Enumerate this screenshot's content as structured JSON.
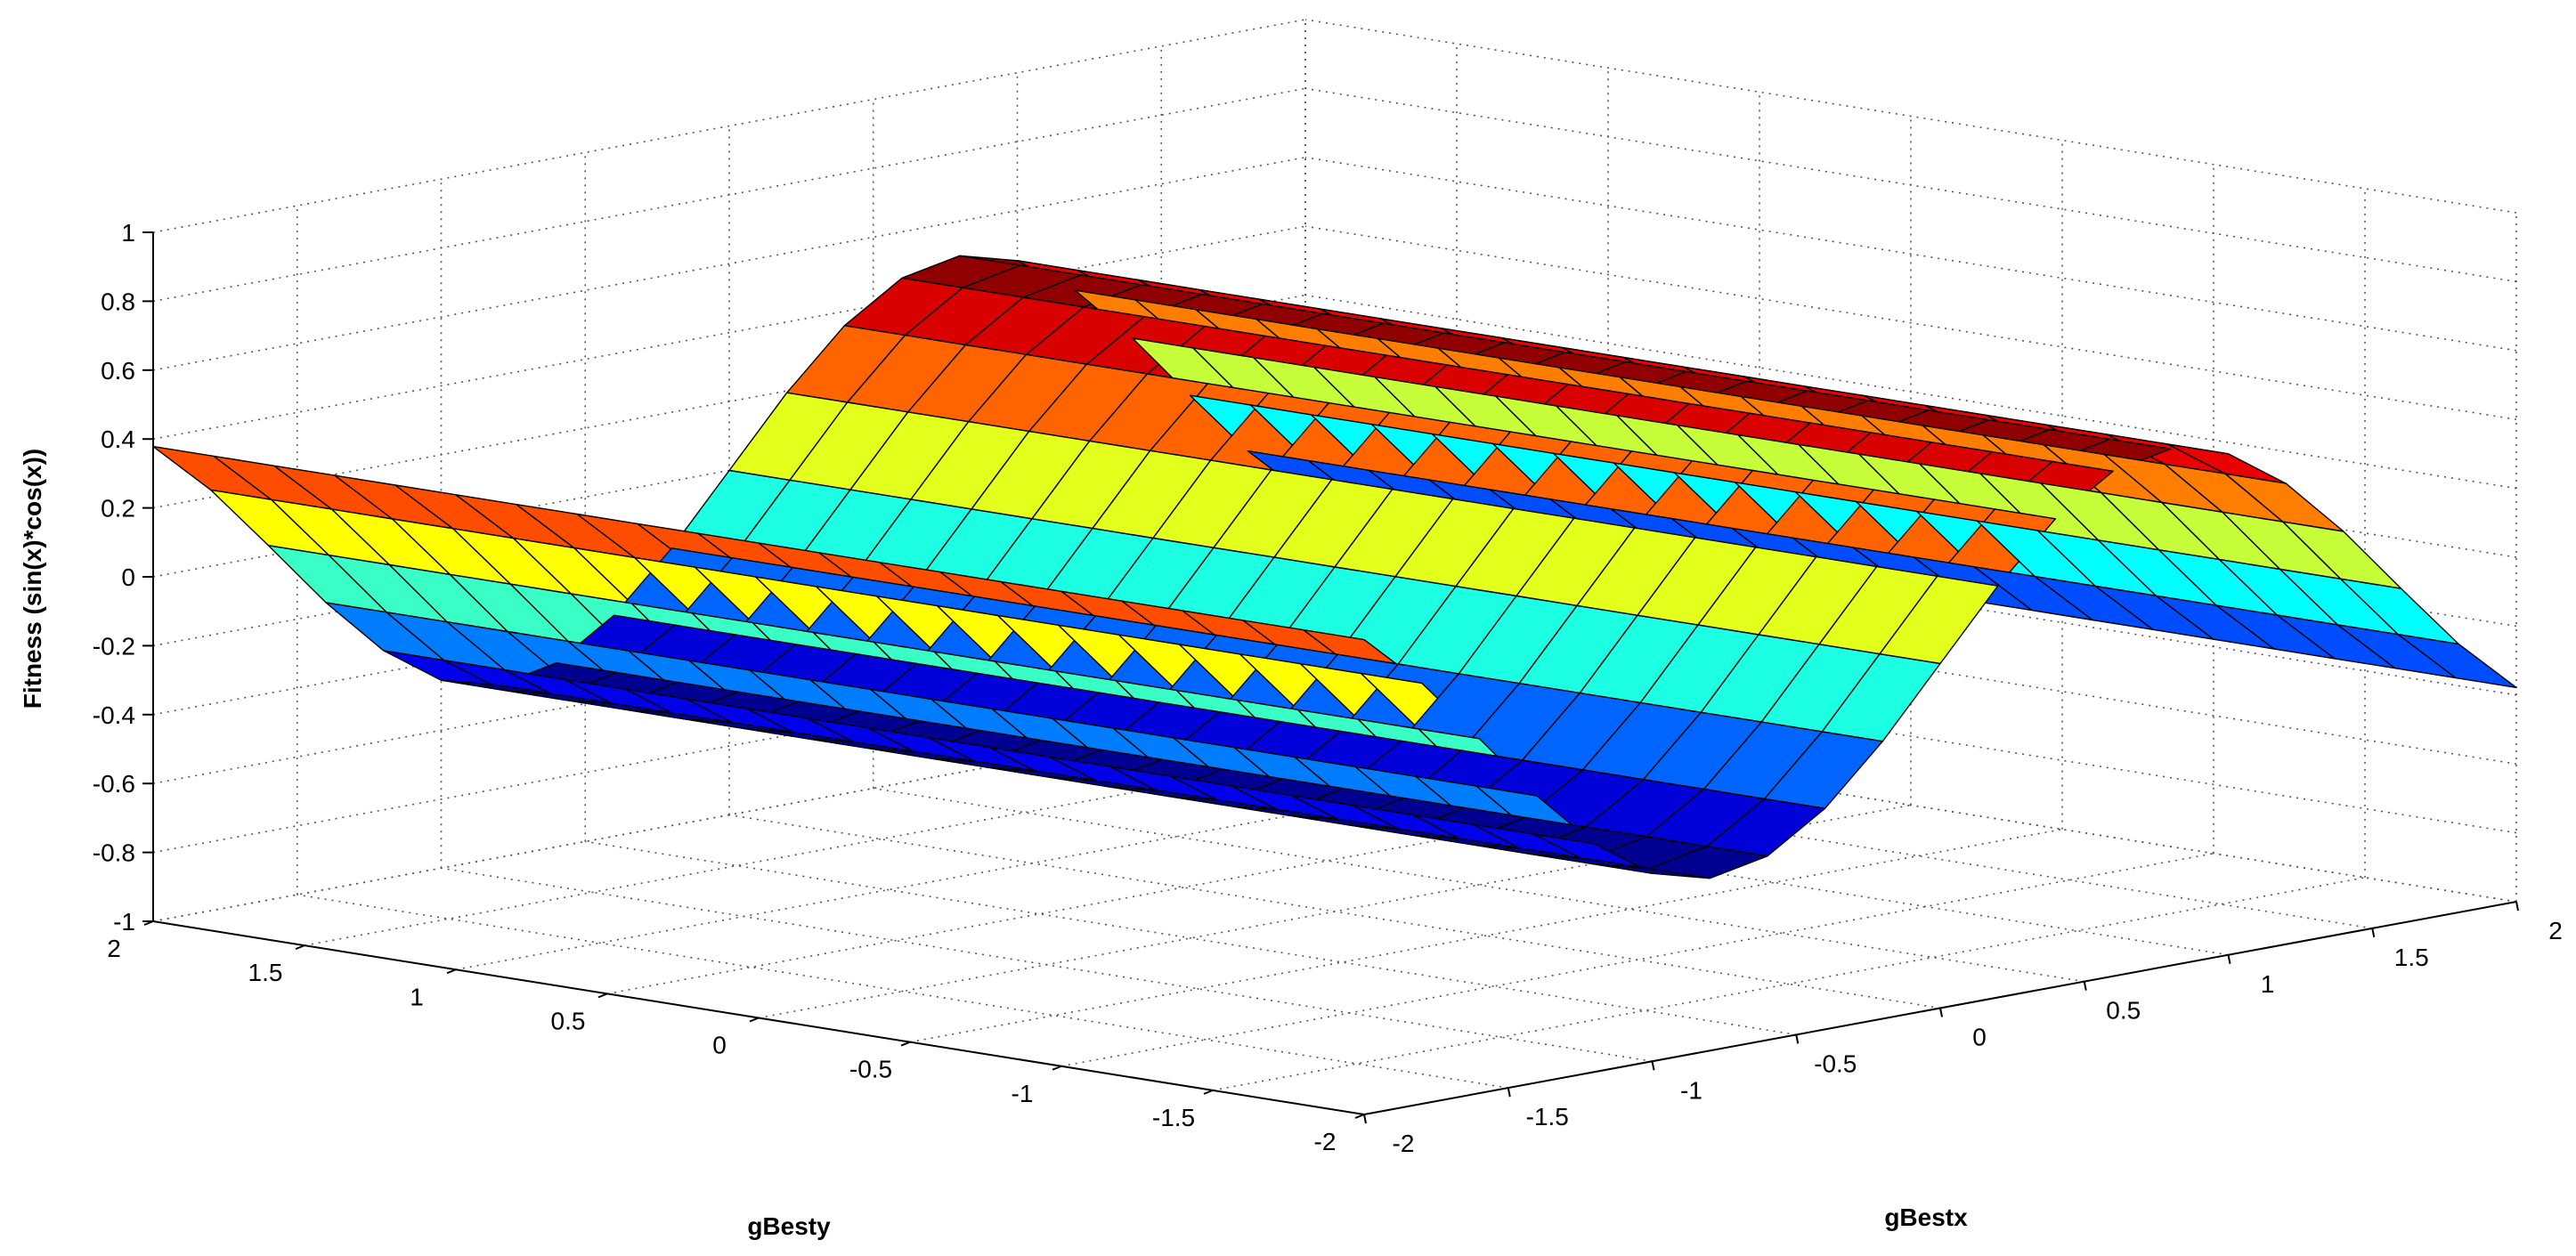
{
  "chart_data": {
    "type": "surface",
    "function": "sin(x)*cos(x)",
    "xlabel": "gBestx",
    "ylabel": "gBesty",
    "zlabel": "Fitness (sin(x)*cos(x))",
    "xlim": [
      -2,
      2
    ],
    "ylim": [
      -2,
      2
    ],
    "zlim": [
      -1,
      1
    ],
    "grid": true,
    "colormap": "jet",
    "x_ticks": [
      -2,
      -1.5,
      -1,
      -0.5,
      0,
      0.5,
      1,
      1.5,
      2
    ],
    "y_ticks": [
      -2,
      -1.5,
      -1,
      -0.5,
      0,
      0.5,
      1,
      1.5,
      2
    ],
    "z_ticks": [
      -1,
      -0.8,
      -0.6,
      -0.4,
      -0.2,
      0,
      0.2,
      0.4,
      0.6,
      0.8,
      1
    ],
    "x_tick_labels": [
      "-2",
      "-1.5",
      "-1",
      "-0.5",
      "0",
      "0.5",
      "1",
      "1.5",
      "2"
    ],
    "y_tick_labels": [
      "-2",
      "-1.5",
      "-1",
      "-0.5",
      "0",
      "0.5",
      "1",
      "1.5",
      "2"
    ],
    "z_tick_labels": [
      "-1",
      "-0.8",
      "-0.6",
      "-0.4",
      "-0.2",
      "0",
      "0.2",
      "0.4",
      "0.6",
      "0.8",
      "1"
    ],
    "mesh_x": [
      -2,
      -1.8,
      -1.6,
      -1.4,
      -1.2,
      -1,
      -0.8,
      -0.6,
      -0.4,
      -0.2,
      0,
      0.2,
      0.4,
      0.6,
      0.8,
      1,
      1.2,
      1.4,
      1.6,
      1.8,
      2
    ],
    "mesh_y": [
      -2,
      -1.8,
      -1.6,
      -1.4,
      -1.2,
      -1,
      -0.8,
      -0.6,
      -0.4,
      -0.2,
      0,
      0.2,
      0.4,
      0.6,
      0.8,
      1,
      1.2,
      1.4,
      1.6,
      1.8,
      2
    ]
  }
}
